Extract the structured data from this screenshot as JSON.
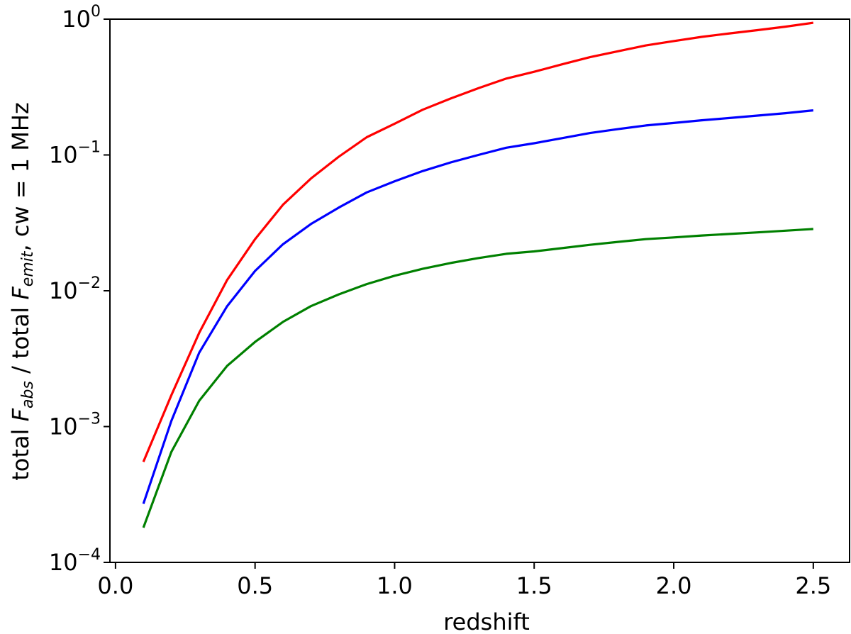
{
  "chart_data": {
    "type": "line",
    "title": "",
    "xlabel": "redshift",
    "ylabel": {
      "prefix": "total ",
      "f1": "F",
      "f1_sub": "abs",
      "middle": " / total ",
      "f2": "F",
      "f2_sub": "emit",
      "suffix": ", cw = 1 MHz"
    },
    "xlim": [
      -0.02,
      2.63
    ],
    "ylim": [
      0.0001,
      1
    ],
    "yscale": "log",
    "grid": false,
    "xticks": [
      {
        "value": 0.0,
        "label": "0.0"
      },
      {
        "value": 0.5,
        "label": "0.5"
      },
      {
        "value": 1.0,
        "label": "1.0"
      },
      {
        "value": 1.5,
        "label": "1.5"
      },
      {
        "value": 2.0,
        "label": "2.0"
      },
      {
        "value": 2.5,
        "label": "2.5"
      }
    ],
    "yticks": [
      {
        "value": 0.0001,
        "base": "10",
        "exp": "−4"
      },
      {
        "value": 0.001,
        "base": "10",
        "exp": "−3"
      },
      {
        "value": 0.01,
        "base": "10",
        "exp": "−2"
      },
      {
        "value": 0.1,
        "base": "10",
        "exp": "−1"
      },
      {
        "value": 1,
        "base": "10",
        "exp": "0"
      }
    ],
    "x": [
      0.1,
      0.2,
      0.3,
      0.4,
      0.5,
      0.6,
      0.7,
      0.8,
      0.9,
      1.0,
      1.1,
      1.2,
      1.3,
      1.4,
      1.5,
      1.6,
      1.7,
      1.8,
      1.9,
      2.0,
      2.1,
      2.2,
      2.3,
      2.4,
      2.5
    ],
    "series": [
      {
        "color": "#ff0000",
        "values": [
          0.00055,
          0.0017,
          0.0049,
          0.012,
          0.024,
          0.043,
          0.067,
          0.097,
          0.135,
          0.17,
          0.215,
          0.26,
          0.31,
          0.365,
          0.41,
          0.465,
          0.525,
          0.58,
          0.64,
          0.69,
          0.74,
          0.785,
          0.83,
          0.88,
          0.94
        ]
      },
      {
        "color": "#0000ff",
        "values": [
          0.00027,
          0.0011,
          0.0035,
          0.0077,
          0.014,
          0.022,
          0.031,
          0.041,
          0.053,
          0.064,
          0.076,
          0.088,
          0.1,
          0.113,
          0.122,
          0.133,
          0.145,
          0.155,
          0.165,
          0.172,
          0.18,
          0.187,
          0.195,
          0.203,
          0.213
        ]
      },
      {
        "color": "#008000",
        "values": [
          0.00018,
          0.00065,
          0.00155,
          0.0028,
          0.0042,
          0.0059,
          0.0077,
          0.0094,
          0.0112,
          0.0129,
          0.0145,
          0.016,
          0.0174,
          0.0187,
          0.0195,
          0.0206,
          0.0218,
          0.0229,
          0.024,
          0.0247,
          0.0255,
          0.0262,
          0.0269,
          0.0277,
          0.0285
        ]
      }
    ]
  }
}
